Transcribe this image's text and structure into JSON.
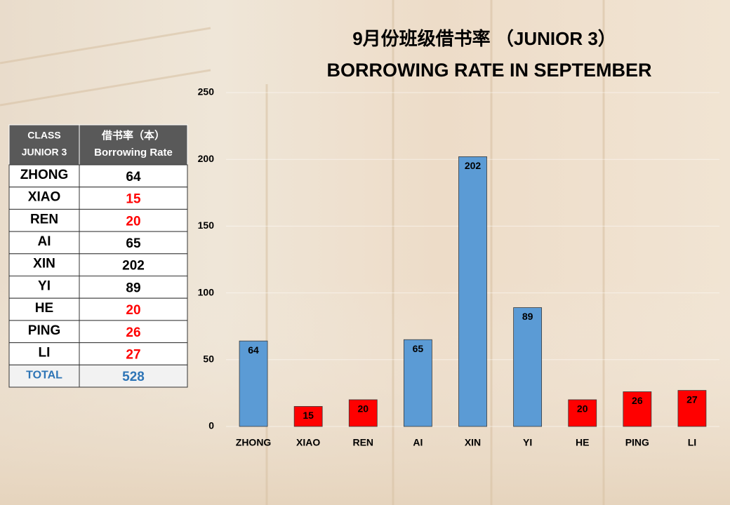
{
  "chart_data": {
    "type": "bar",
    "title": "9月份班级借书率 （JUNIOR 3）",
    "subtitle": "BORROWING RATE IN SEPTEMBER",
    "categories": [
      "ZHONG",
      "XIAO",
      "REN",
      "AI",
      "XIN",
      "YI",
      "HE",
      "PING",
      "LI"
    ],
    "values": [
      64,
      15,
      20,
      65,
      202,
      89,
      20,
      26,
      27
    ],
    "colors": [
      "#5b9bd5",
      "#ff0000",
      "#ff0000",
      "#5b9bd5",
      "#5b9bd5",
      "#5b9bd5",
      "#ff0000",
      "#ff0000",
      "#ff0000"
    ],
    "ylim": [
      0,
      250
    ],
    "yticks": [
      0,
      50,
      100,
      150,
      200,
      250
    ],
    "grid": true
  },
  "table": {
    "header": [
      [
        "CLASS",
        "JUNIOR 3"
      ],
      [
        "借书率（本）",
        "Borrowing Rate"
      ]
    ],
    "rows": [
      [
        "ZHONG",
        64
      ],
      [
        "XIAO",
        15
      ],
      [
        "REN",
        20
      ],
      [
        "AI",
        65
      ],
      [
        "XIN",
        202
      ],
      [
        "YI",
        89
      ],
      [
        "HE",
        20
      ],
      [
        "PING",
        26
      ],
      [
        "LI",
        27
      ]
    ],
    "value_colors": [
      "#000000",
      "#ff0000",
      "#ff0000",
      "#000000",
      "#000000",
      "#000000",
      "#ff0000",
      "#ff0000",
      "#ff0000"
    ],
    "total": [
      "TOTAL",
      528
    ],
    "total_color": "#2e75b6"
  }
}
